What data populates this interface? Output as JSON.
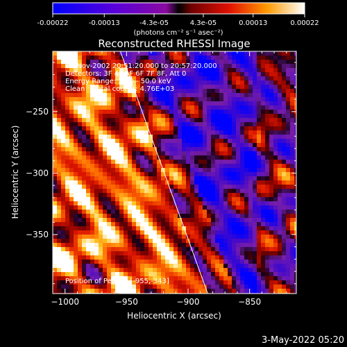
{
  "colorbar": {
    "tick_labels": [
      "-0.00022",
      "-0.00013",
      "-4.3e-05",
      "4.3e-05",
      "0.00013",
      "0.00022"
    ],
    "tick_values": [
      -0.00022,
      -0.00013,
      -4.3e-05,
      4.3e-05,
      0.00013,
      0.00022
    ],
    "unit_label": "(photons cm⁻² s⁻¹ asec⁻²)",
    "range": [
      -0.00022,
      0.00022
    ]
  },
  "chart_data": {
    "type": "heatmap",
    "title": "Reconstructed RHESSI Image",
    "xlabel": "Heliocentric X (arcsec)",
    "ylabel": "Heliocentric Y (arcsec)",
    "xlim": [
      -1010,
      -812
    ],
    "ylim": [
      -398,
      -201
    ],
    "xticks": [
      -1000,
      -950,
      -900,
      -850
    ],
    "yticks": [
      -250,
      -300,
      -350
    ],
    "xtick_labels": [
      "−1000",
      "−950",
      "−900",
      "−850"
    ],
    "ytick_labels": [
      "−250",
      "−300",
      "−350"
    ],
    "limb_line": [
      [
        -955,
        -201
      ],
      [
        -884,
        -398
      ]
    ],
    "peak_position": [
      -955,
      -343
    ],
    "annotations": [
      "15-Nov-2002 20:51:20.000 to 20:57:20.000",
      "Detectors: 3F 4F 5F 6F 7F 8F, Att 0",
      "Energy Range: 25.0 - 50.0 keV",
      "Clean    Total counts: 4.76E+03"
    ],
    "peak_label": "Position of Peak = [-955,-343]",
    "grid": false
  },
  "footer": {
    "date_stamp": "3-May-2022 05:20"
  }
}
